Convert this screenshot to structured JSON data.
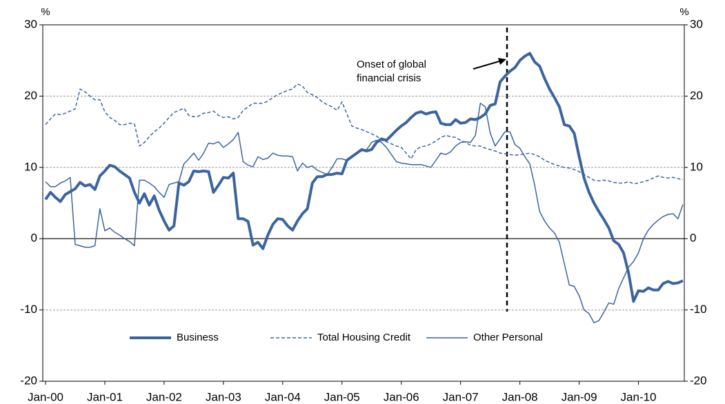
{
  "chart_data": {
    "type": "line",
    "y_unit_label": "%",
    "y2_unit_label": "%",
    "annotation": [
      "Onset of global",
      "financial crisis"
    ],
    "categories": [
      "Jan-00",
      null,
      null,
      null,
      null,
      null,
      null,
      null,
      null,
      null,
      null,
      null,
      "Jan-01",
      null,
      null,
      null,
      null,
      null,
      null,
      null,
      null,
      null,
      null,
      null,
      "Jan-02",
      null,
      null,
      null,
      null,
      null,
      null,
      null,
      null,
      null,
      null,
      null,
      "Jan-03",
      null,
      null,
      null,
      null,
      null,
      null,
      null,
      null,
      null,
      null,
      null,
      "Jan-04",
      null,
      null,
      null,
      null,
      null,
      null,
      null,
      null,
      null,
      null,
      null,
      "Jan-05",
      null,
      null,
      null,
      null,
      null,
      null,
      null,
      null,
      null,
      null,
      null,
      "Jan-06",
      null,
      null,
      null,
      null,
      null,
      null,
      null,
      null,
      null,
      null,
      null,
      "Jan-07",
      null,
      null,
      null,
      null,
      null,
      null,
      null,
      null,
      null,
      null,
      null,
      "Jan-08",
      null,
      null,
      null,
      null,
      null,
      null,
      null,
      null,
      null,
      null,
      null,
      "Jan-09",
      null,
      null,
      null,
      null,
      null,
      null,
      null,
      null,
      null,
      null,
      null,
      "Jan-10",
      null,
      null,
      null,
      null,
      null,
      null,
      null,
      null,
      null
    ],
    "series": [
      {
        "name": "Business",
        "color": "#3a64a0",
        "linewidth": 4,
        "linestyle": "solid",
        "values": [
          5.5,
          6.5,
          5.8,
          5.2,
          6.2,
          6.6,
          7.0,
          7.9,
          7.4,
          7.6,
          6.9,
          8.8,
          9.5,
          10.3,
          10.1,
          9.5,
          9.0,
          8.5,
          6.5,
          5.0,
          6.3,
          4.7,
          6.0,
          4.0,
          2.5,
          1.2,
          1.8,
          7.8,
          7.5,
          8.0,
          9.5,
          9.4,
          9.5,
          9.4,
          6.5,
          7.5,
          8.6,
          8.5,
          9.2,
          2.8,
          2.8,
          2.4,
          -0.9,
          -0.5,
          -1.4,
          0.5,
          2.0,
          2.8,
          2.7,
          1.8,
          1.2,
          2.5,
          3.5,
          4.2,
          7.8,
          8.7,
          8.7,
          9.0,
          9.0,
          9.2,
          9.1,
          11.0,
          11.5,
          12.0,
          12.5,
          12.3,
          12.5,
          13.5,
          14.0,
          13.8,
          14.5,
          15.2,
          15.8,
          16.3,
          17.0,
          17.6,
          17.8,
          17.5,
          17.7,
          17.8,
          16.2,
          16.0,
          16.0,
          16.7,
          16.2,
          16.3,
          16.8,
          16.7,
          17.0,
          17.5,
          18.7,
          18.9,
          22.0,
          22.8,
          23.5,
          24.0,
          25.0,
          25.6,
          26.0,
          24.8,
          24.2,
          22.5,
          21.0,
          19.8,
          18.5,
          16.0,
          15.8,
          14.8,
          11.5,
          8.5,
          6.5,
          5.0,
          3.8,
          2.7,
          1.5,
          -0.3,
          -0.8,
          -2.0,
          -4.8,
          -8.8,
          -7.3,
          -7.4,
          -6.9,
          -7.2,
          -7.2,
          -6.3,
          -6.0,
          -6.3,
          -6.2,
          -5.9
        ]
      },
      {
        "name": "Total Housing Credit",
        "color": "#3a64a0",
        "linewidth": 1.5,
        "linestyle": "dashed",
        "values": [
          16.0,
          16.8,
          17.5,
          17.4,
          17.6,
          17.9,
          18.2,
          21.0,
          20.6,
          20.0,
          19.5,
          19.5,
          17.8,
          17.0,
          16.6,
          16.0,
          16.0,
          16.2,
          16.1,
          13.0,
          13.5,
          14.3,
          15.0,
          15.5,
          16.2,
          17.0,
          17.7,
          18.0,
          18.3,
          17.3,
          17.1,
          17.2,
          17.6,
          17.7,
          17.9,
          17.3,
          17.0,
          17.1,
          16.8,
          17.0,
          18.0,
          18.5,
          19.0,
          19.0,
          19.0,
          19.3,
          19.8,
          20.2,
          20.5,
          20.8,
          21.0,
          21.7,
          21.4,
          20.5,
          20.2,
          19.8,
          19.2,
          18.8,
          18.5,
          18.0,
          19.2,
          17.5,
          15.8,
          15.5,
          15.3,
          15.0,
          14.7,
          14.4,
          13.8,
          13.6,
          13.3,
          13.0,
          12.8,
          12.0,
          11.2,
          12.5,
          12.9,
          13.0,
          13.3,
          13.7,
          14.2,
          14.5,
          14.3,
          14.2,
          13.8,
          13.5,
          13.1,
          13.0,
          13.0,
          12.7,
          12.5,
          12.3,
          12.0,
          11.9,
          11.8,
          11.7,
          11.8,
          11.9,
          12.0,
          11.8,
          11.5,
          11.0,
          10.7,
          10.4,
          10.2,
          10.0,
          9.9,
          9.7,
          9.4,
          9.0,
          8.6,
          8.2,
          8.1,
          8.2,
          8.1,
          7.9,
          7.8,
          7.8,
          8.0,
          7.7,
          7.8,
          8.0,
          8.2,
          8.5,
          8.8,
          8.6,
          8.5,
          8.6,
          8.4,
          8.3
        ]
      },
      {
        "name": "Other Personal",
        "color": "#3a64a0",
        "linewidth": 1.5,
        "linestyle": "solid",
        "values": [
          8.0,
          7.3,
          7.3,
          7.8,
          8.1,
          8.6,
          -0.8,
          -1.0,
          -1.2,
          -1.2,
          -1.0,
          4.2,
          1.1,
          1.5,
          0.9,
          0.5,
          0.0,
          -0.4,
          -1.0,
          8.2,
          8.2,
          7.8,
          7.3,
          6.5,
          5.8,
          7.6,
          7.8,
          8.0,
          10.5,
          11.2,
          12.0,
          11.0,
          12.0,
          13.4,
          13.3,
          13.6,
          12.8,
          13.3,
          13.9,
          14.9,
          10.8,
          10.3,
          10.1,
          11.5,
          11.1,
          11.3,
          12.0,
          11.7,
          11.6,
          11.6,
          11.5,
          9.5,
          10.6,
          10.0,
          10.2,
          9.6,
          9.3,
          9.0,
          10.0,
          11.2,
          11.2,
          11.0,
          11.5,
          12.0,
          12.3,
          12.5,
          13.5,
          13.8,
          13.5,
          12.8,
          11.8,
          10.8,
          10.6,
          10.5,
          10.4,
          10.4,
          10.4,
          10.2,
          10.0,
          11.0,
          12.0,
          11.8,
          12.2,
          13.0,
          13.5,
          13.6,
          13.5,
          14.5,
          19.0,
          18.5,
          14.8,
          13.0,
          14.0,
          15.0,
          15.0,
          13.2,
          12.7,
          11.5,
          10.5,
          7.5,
          3.8,
          2.5,
          1.5,
          0.8,
          -0.5,
          -3.5,
          -6.5,
          -6.7,
          -8.0,
          -10.0,
          -10.5,
          -11.8,
          -11.5,
          -10.3,
          -9.0,
          -9.2,
          -7.0,
          -5.5,
          -4.0,
          -3.2,
          -2.0,
          0.0,
          1.2,
          2.0,
          2.6,
          3.1,
          3.4,
          3.5,
          2.8,
          4.8
        ]
      }
    ],
    "ylim": [
      -20,
      30
    ],
    "yticks": [
      -20,
      -10,
      0,
      10,
      20,
      30
    ],
    "y2lim": [
      -20,
      30
    ],
    "y2ticks": [
      -20,
      -10,
      0,
      10,
      20,
      30
    ],
    "grid": true,
    "legend": "bottom"
  }
}
